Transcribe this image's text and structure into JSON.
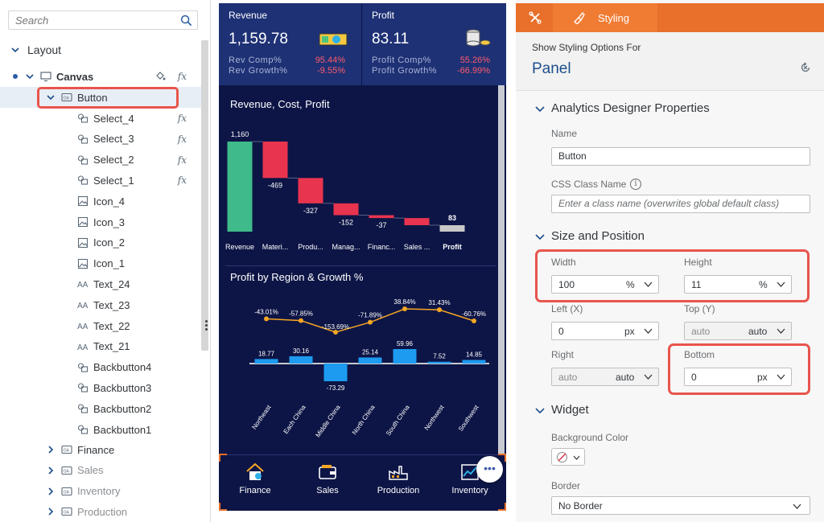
{
  "outline": {
    "search_placeholder": "Search",
    "section_label": "Layout",
    "canvas_label": "Canvas",
    "selected_label": "Button",
    "children": [
      {
        "label": "Select_4",
        "icon": "widget-group-icon",
        "fx": true
      },
      {
        "label": "Select_3",
        "icon": "widget-group-icon",
        "fx": true
      },
      {
        "label": "Select_2",
        "icon": "widget-group-icon",
        "fx": true
      },
      {
        "label": "Select_1",
        "icon": "widget-group-icon",
        "fx": true
      },
      {
        "label": "Icon_4",
        "icon": "image-icon",
        "fx": false
      },
      {
        "label": "Icon_3",
        "icon": "image-icon",
        "fx": false
      },
      {
        "label": "Icon_2",
        "icon": "image-icon",
        "fx": false
      },
      {
        "label": "Icon_1",
        "icon": "image-icon",
        "fx": false
      },
      {
        "label": "Text_24",
        "icon": "text-icon",
        "fx": false
      },
      {
        "label": "Text_23",
        "icon": "text-icon",
        "fx": false
      },
      {
        "label": "Text_22",
        "icon": "text-icon",
        "fx": false
      },
      {
        "label": "Text_21",
        "icon": "text-icon",
        "fx": false
      },
      {
        "label": "Backbutton4",
        "icon": "widget-group-icon",
        "fx": false
      },
      {
        "label": "Backbutton3",
        "icon": "widget-group-icon",
        "fx": false
      },
      {
        "label": "Backbutton2",
        "icon": "widget-group-icon",
        "fx": false
      },
      {
        "label": "Backbutton1",
        "icon": "widget-group-icon",
        "fx": false
      }
    ],
    "panels": [
      {
        "label": "Finance",
        "dim": false
      },
      {
        "label": "Sales",
        "dim": true
      },
      {
        "label": "Inventory",
        "dim": true
      },
      {
        "label": "Production",
        "dim": true
      }
    ],
    "fx_symbol": "fx"
  },
  "preview": {
    "revenue": {
      "title": "Revenue",
      "value": "1,159.78",
      "row1_label": "Rev Comp%",
      "row1_value": "95.44%",
      "row2_label": "Rev Growth%",
      "row2_value": "-9.55%"
    },
    "profit": {
      "title": "Profit",
      "value": "83.11",
      "row1_label": "Profit Comp%",
      "row1_value": "55.26%",
      "row2_label": "Profit Growth%",
      "row2_value": "-66.99%"
    },
    "nav": [
      "Finance",
      "Sales",
      "Production",
      "Inventory"
    ],
    "more_label": "•••"
  },
  "chart_data": [
    {
      "type": "bar",
      "subtype": "waterfall",
      "title": "Revenue, Cost, Profit",
      "categories": [
        "Revenue",
        "Materi...",
        "Produ...",
        "Manag...",
        "Financ...",
        "Sales ...",
        "Profit"
      ],
      "values": [
        1160,
        -469,
        -327,
        -152,
        -37,
        -92,
        83
      ],
      "data_labels": [
        "1,160",
        "-469",
        "-327",
        "-152",
        "-37",
        "",
        "83"
      ],
      "colors": {
        "total": "#3fba8a",
        "negative": "#e8344e",
        "profit": "#c8c8c8"
      }
    },
    {
      "type": "bar",
      "subtype": "bar-with-line",
      "title": "Profit by Region & Growth %",
      "categories": [
        "Northeast",
        "Each China",
        "Middle China",
        "North China",
        "South China",
        "Northwest",
        "Southwest"
      ],
      "values": [
        18.77,
        30.16,
        -73.29,
        25.14,
        59.96,
        7.52,
        14.85
      ],
      "growth": [
        -43.01,
        -57.85,
        -153.69,
        -71.89,
        38.84,
        31.43,
        -60.76
      ],
      "bar_labels": [
        "18.77",
        "30.16",
        "-73.29",
        "25.14",
        "59.96",
        "7.52",
        "14.85"
      ],
      "growth_labels": [
        "-43.01%",
        "-57.85%",
        "-153.69%",
        "-71.89%",
        "38.84%",
        "31.43%",
        "-60.76%"
      ],
      "colors": {
        "bar": "#1d9bf0",
        "line": "#f5a623"
      }
    }
  ],
  "styling": {
    "tab_label": "Styling",
    "show_for": "Show Styling Options For",
    "target": "Panel",
    "props_title": "Analytics Designer Properties",
    "name_label": "Name",
    "name_value": "Button",
    "css_label": "CSS Class Name",
    "css_placeholder": "Enter a class name (overwrites global default class)",
    "size_title": "Size and Position",
    "width_label": "Width",
    "width_value": "100",
    "width_unit": "%",
    "height_label": "Height",
    "height_value": "11",
    "height_unit": "%",
    "left_label": "Left (X)",
    "left_value": "0",
    "left_unit": "px",
    "top_label": "Top (Y)",
    "top_value": "auto",
    "top_unit": "auto",
    "right_label": "Right",
    "right_value": "auto",
    "right_unit": "auto",
    "bottom_label": "Bottom",
    "bottom_value": "0",
    "bottom_unit": "px",
    "widget_title": "Widget",
    "bg_label": "Background Color",
    "border_label": "Border",
    "border_value": "No Border",
    "info_glyph": "i"
  },
  "colors": {
    "accent": "#e8702a",
    "highlight": "#e8554d",
    "panel_title": "#1c4f8c",
    "dashboard_bg": "#0d1546",
    "kpi_bg": "#1e3175"
  }
}
